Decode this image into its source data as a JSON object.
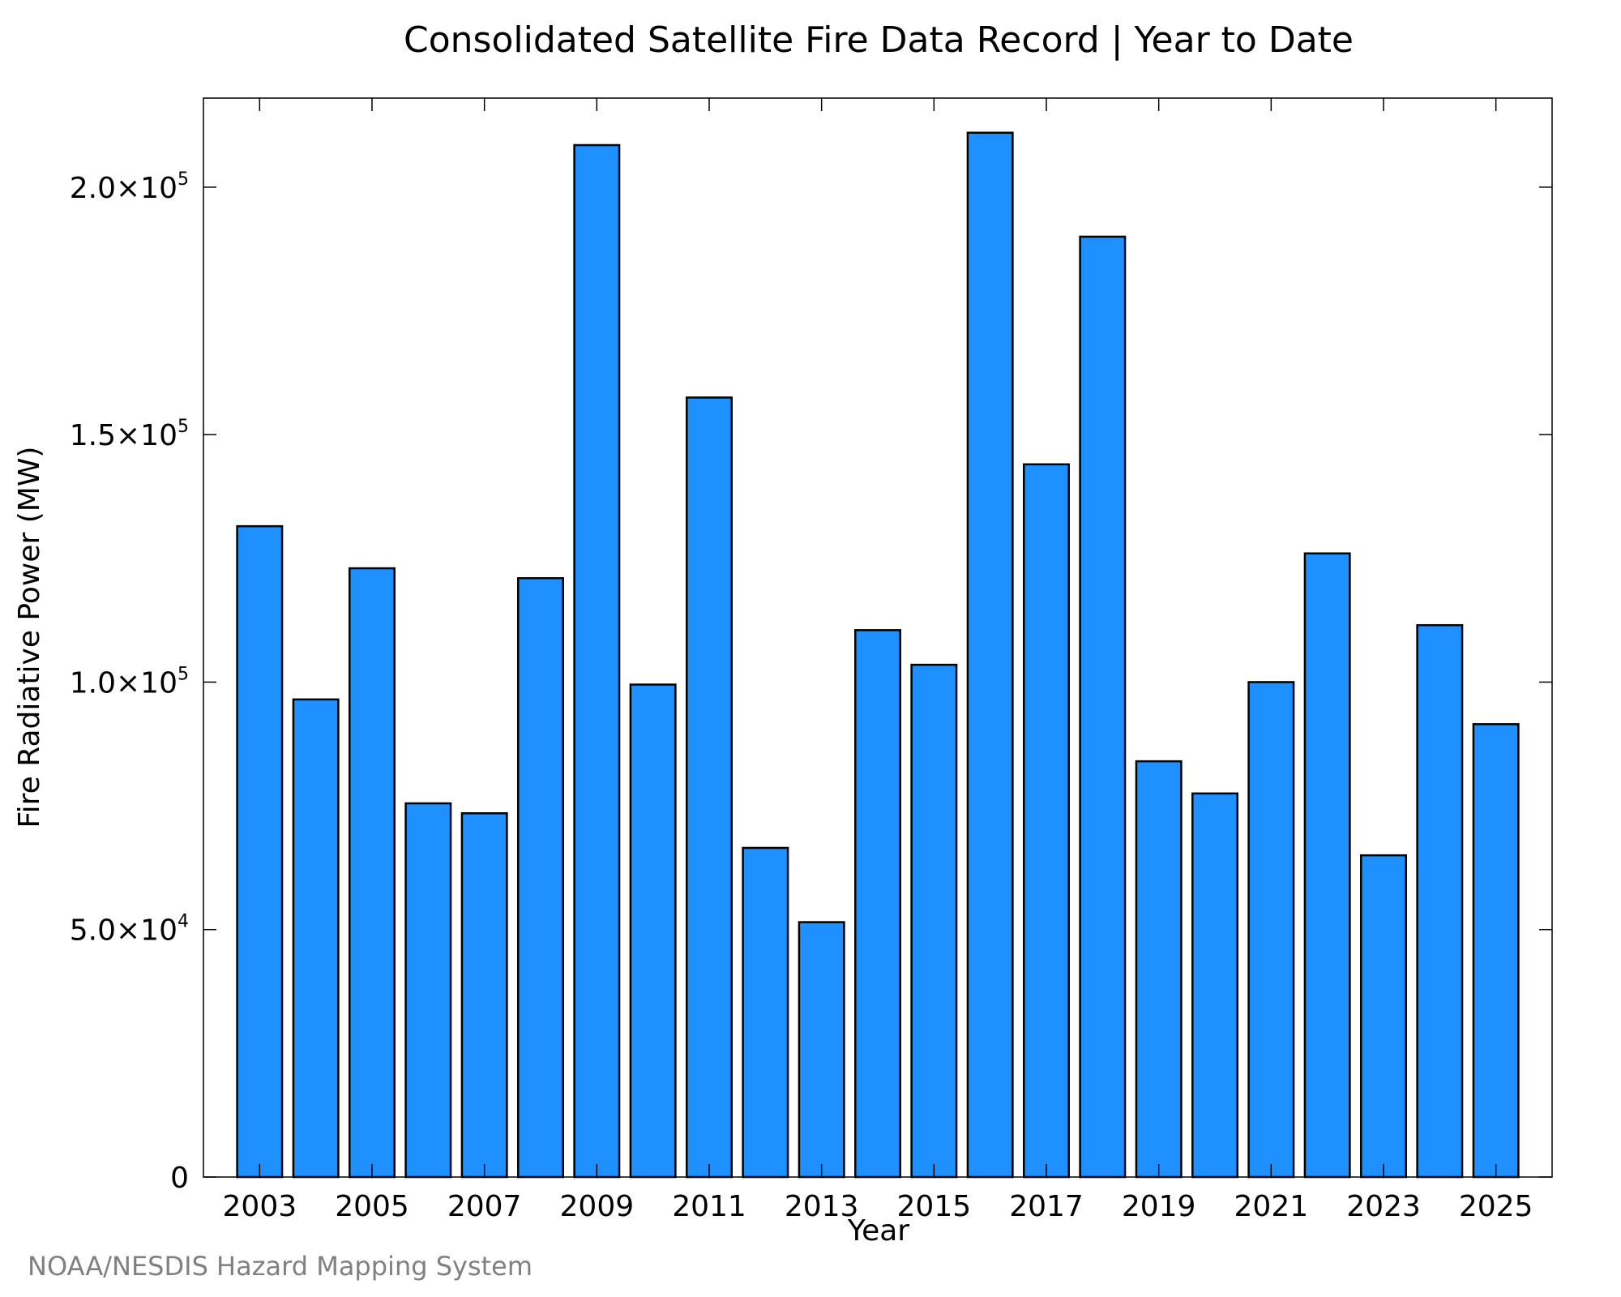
{
  "chart_data": {
    "type": "bar",
    "title": "Consolidated Satellite Fire Data Record | Year to Date",
    "xlabel": "Year",
    "ylabel": "Fire Radiative Power (MW)",
    "categories": [
      "2003",
      "2004",
      "2005",
      "2006",
      "2007",
      "2008",
      "2009",
      "2010",
      "2011",
      "2012",
      "2013",
      "2014",
      "2015",
      "2016",
      "2017",
      "2018",
      "2019",
      "2020",
      "2021",
      "2022",
      "2023",
      "2024",
      "2025"
    ],
    "values": [
      131500,
      96500,
      123000,
      75500,
      73500,
      121000,
      208500,
      99500,
      157500,
      66500,
      51500,
      110500,
      103500,
      211000,
      144000,
      190000,
      84000,
      77500,
      100000,
      126000,
      65000,
      111500,
      91500
    ],
    "ylim": [
      0,
      218000
    ],
    "y_ticks": [
      {
        "value": 0,
        "label": "0",
        "exp": ""
      },
      {
        "value": 50000,
        "label": "5.0×10",
        "exp": "4"
      },
      {
        "value": 100000,
        "label": "1.0×10",
        "exp": "5"
      },
      {
        "value": 150000,
        "label": "1.5×10",
        "exp": "5"
      },
      {
        "value": 200000,
        "label": "2.0×10",
        "exp": "5"
      }
    ],
    "x_tick_labels": [
      "2003",
      "2005",
      "2007",
      "2009",
      "2011",
      "2013",
      "2015",
      "2017",
      "2019",
      "2021",
      "2023",
      "2025"
    ],
    "grid": false,
    "bar_color": "#1E90FF",
    "edge_color": "#000000"
  },
  "credit": "NOAA/NESDIS Hazard Mapping System"
}
